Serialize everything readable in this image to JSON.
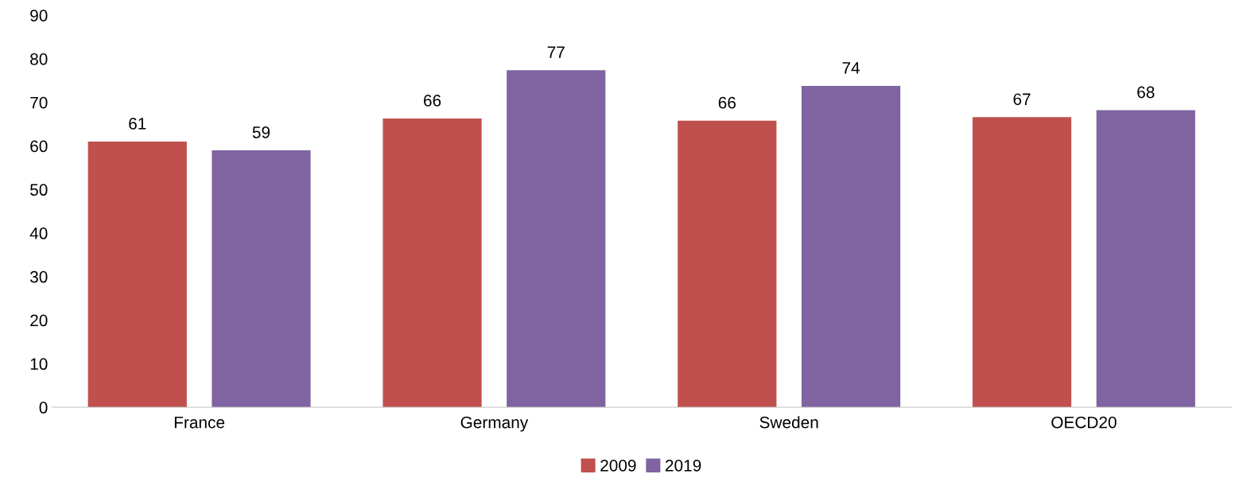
{
  "chart_data": {
    "type": "bar",
    "categories": [
      "France",
      "Germany",
      "Sweden",
      "OECD20"
    ],
    "series": [
      {
        "name": "2009",
        "color": "#c0504d",
        "values": [
          61,
          66.3,
          65.8,
          66.6
        ],
        "value_labels": [
          "61",
          "66",
          "66",
          "67"
        ]
      },
      {
        "name": "2019",
        "color": "#8064a2",
        "values": [
          59,
          77.4,
          73.8,
          68.2
        ],
        "value_labels": [
          "59",
          "77",
          "74",
          "68"
        ]
      }
    ],
    "ylim": [
      0,
      90
    ],
    "yticks": [
      0,
      10,
      20,
      30,
      40,
      50,
      60,
      70,
      80,
      90
    ],
    "grid": false,
    "legend": "bottom"
  }
}
